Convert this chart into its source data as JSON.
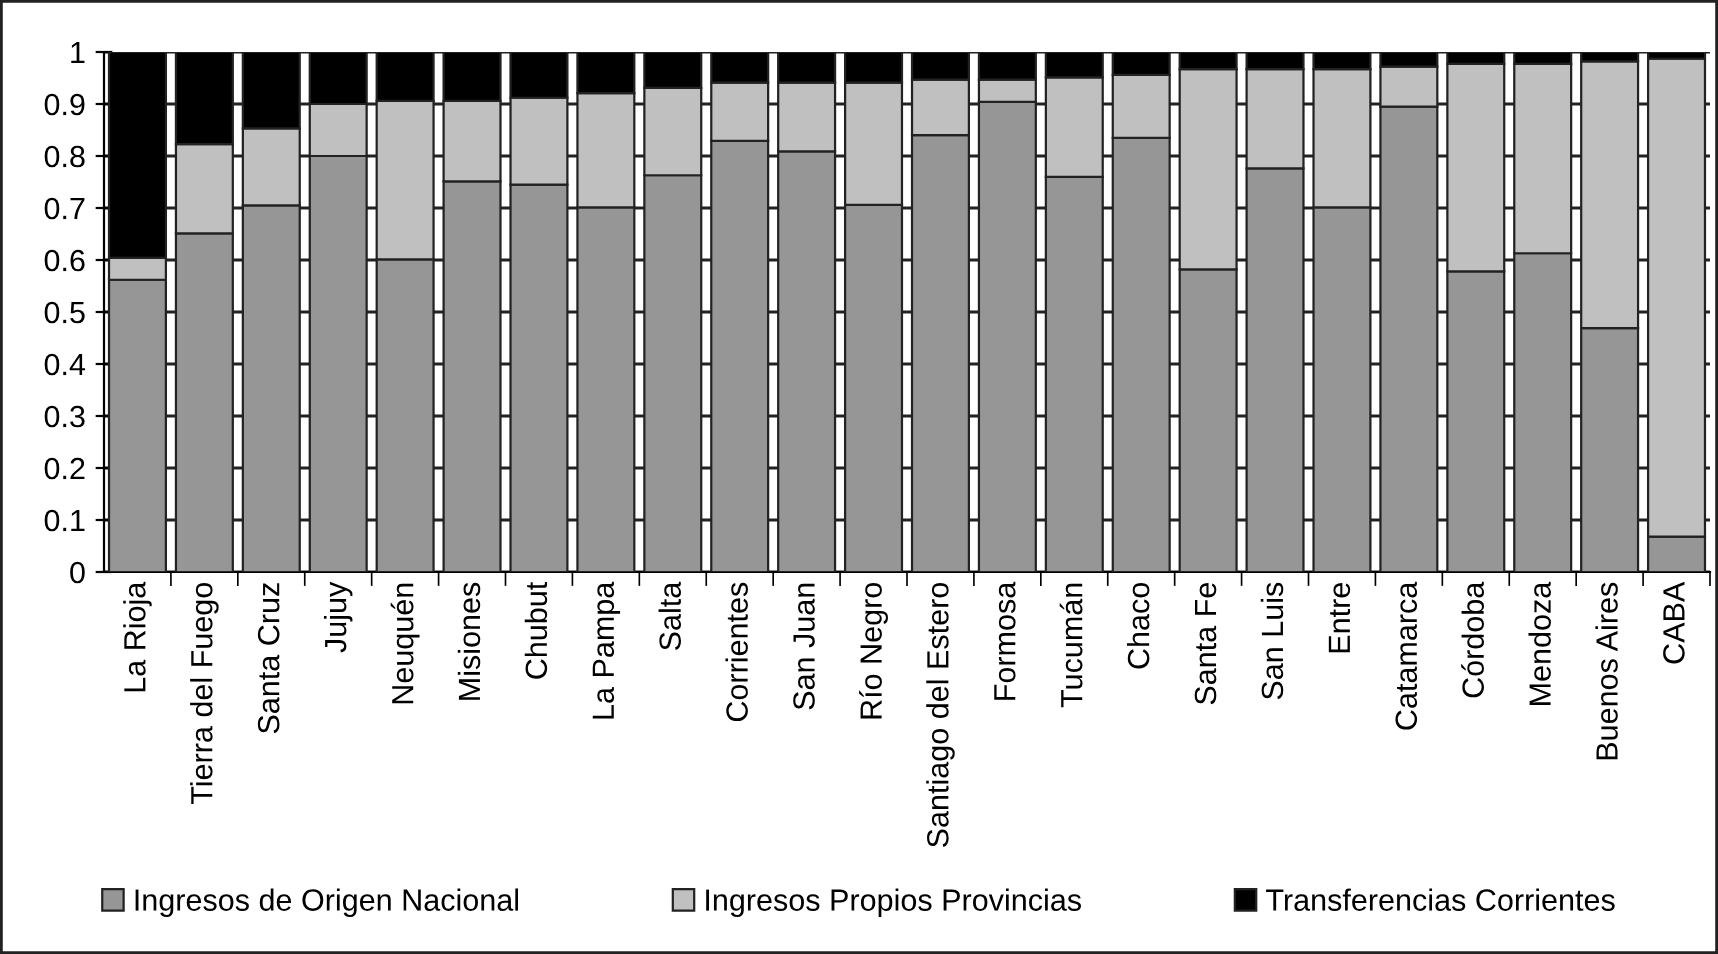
{
  "chart_data": {
    "type": "bar",
    "stacked": true,
    "categories": [
      "La Rioja",
      "Tierra del Fuego",
      "Santa Cruz",
      "Jujuy",
      "Neuquén",
      "Misiones",
      "Chubut",
      "La Pampa",
      "Salta",
      "Corrientes",
      "San Juan",
      "Río Negro",
      "Santiago del Estero",
      "Formosa",
      "Tucumán",
      "Chaco",
      "Santa Fe",
      "San Luis",
      "Entre",
      "Catamarca",
      "Córdoba",
      "Mendoza",
      "Buenos Aires",
      "CABA"
    ],
    "series": [
      {
        "name": "Ingresos de Origen Nacional",
        "color": "#969696",
        "values": [
          0.562,
          0.651,
          0.705,
          0.8,
          0.601,
          0.751,
          0.745,
          0.701,
          0.763,
          0.829,
          0.809,
          0.706,
          0.84,
          0.904,
          0.76,
          0.835,
          0.582,
          0.776,
          0.701,
          0.895,
          0.578,
          0.613,
          0.469,
          0.068
        ]
      },
      {
        "name": "Ingresos Propios Provincias",
        "color": "#c0c0c0",
        "values": [
          0.042,
          0.172,
          0.148,
          0.1,
          0.305,
          0.155,
          0.167,
          0.22,
          0.168,
          0.112,
          0.132,
          0.235,
          0.107,
          0.043,
          0.191,
          0.121,
          0.385,
          0.191,
          0.266,
          0.077,
          0.399,
          0.364,
          0.513,
          0.919
        ]
      },
      {
        "name": "Transferencias Corrientes",
        "color": "#000000",
        "values": [
          0.396,
          0.177,
          0.147,
          0.1,
          0.094,
          0.094,
          0.088,
          0.079,
          0.069,
          0.059,
          0.059,
          0.059,
          0.053,
          0.053,
          0.049,
          0.044,
          0.033,
          0.033,
          0.033,
          0.028,
          0.023,
          0.023,
          0.018,
          0.013
        ]
      }
    ],
    "ylim": [
      0,
      1
    ],
    "yticks": [
      0,
      0.1,
      0.2,
      0.3,
      0.4,
      0.5,
      0.6,
      0.7,
      0.8,
      0.9,
      1
    ],
    "grid": "y",
    "legend": "bottom"
  }
}
